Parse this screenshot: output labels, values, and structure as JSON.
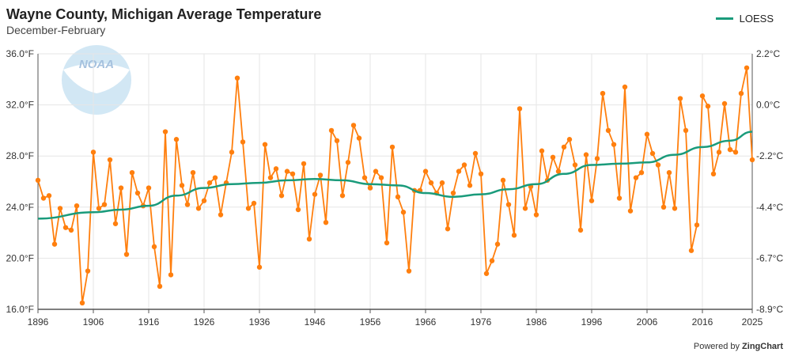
{
  "chart_data": {
    "type": "line",
    "title": "Wayne County, Michigan Average Temperature",
    "subtitle": "December-February",
    "logo_text": "NOAA",
    "credit_prefix": "Powered by",
    "credit_brand": "ZingChart",
    "x_ticks": [
      "1896",
      "1906",
      "1916",
      "1926",
      "1936",
      "1946",
      "1956",
      "1966",
      "1976",
      "1986",
      "1996",
      "2006",
      "2016",
      "2025"
    ],
    "xlim": [
      1896,
      2025
    ],
    "y_left_ticks": [
      "16.0°F",
      "20.0°F",
      "24.0°F",
      "28.0°F",
      "32.0°F",
      "36.0°F"
    ],
    "y_right_ticks": [
      "-8.9°C",
      "-6.7°C",
      "-4.4°C",
      "-2.2°C",
      "0.0°C",
      "2.2°C"
    ],
    "ylim": [
      16,
      36
    ],
    "grid": true,
    "legend_position": "top-right",
    "colors": {
      "temperature": "#ff7f0e",
      "loess": "#1a9b7b",
      "grid": "#e6e6e6"
    },
    "series": [
      {
        "key": "temperature",
        "x_start": 1896,
        "values": [
          26.1,
          24.7,
          24.9,
          21.1,
          23.9,
          22.4,
          22.2,
          24.1,
          16.5,
          19.0,
          28.3,
          23.9,
          24.2,
          27.7,
          22.7,
          25.5,
          20.3,
          26.7,
          25.1,
          24.1,
          25.5,
          20.9,
          17.8,
          29.9,
          18.7,
          29.3,
          25.7,
          24.2,
          26.7,
          23.9,
          24.5,
          25.9,
          26.3,
          23.4,
          25.9,
          28.3,
          34.1,
          29.1,
          23.9,
          24.3,
          19.3,
          28.9,
          26.3,
          27.0,
          24.9,
          26.8,
          26.6,
          23.8,
          27.4,
          21.5,
          25.0,
          26.5,
          22.8,
          30.0,
          29.2,
          24.9,
          27.5,
          30.4,
          29.4,
          26.3,
          25.5,
          26.8,
          26.3,
          21.2,
          28.7,
          24.8,
          23.6,
          19.0,
          25.3,
          25.3,
          26.8,
          25.9,
          25.1,
          25.9,
          22.3,
          25.1,
          26.8,
          27.3,
          25.7,
          28.2,
          26.6,
          18.8,
          19.8,
          21.1,
          26.1,
          24.2,
          21.8,
          31.7,
          23.9,
          25.6,
          23.4,
          28.4,
          26.1,
          27.9,
          26.8,
          28.7,
          29.3,
          27.3,
          22.2,
          28.1,
          24.5,
          27.8,
          32.9,
          30.0,
          28.9,
          24.7,
          33.4,
          23.7,
          26.3,
          26.7,
          29.7,
          28.2,
          27.3,
          24.0,
          26.7,
          23.9,
          32.5,
          30.0,
          20.6,
          22.6,
          32.7,
          31.9,
          26.6,
          28.3,
          32.1,
          28.5,
          28.3,
          32.9,
          34.9,
          27.7
        ]
      },
      {
        "name": "LOESS",
        "key": "loess",
        "x": [
          1896,
          1906,
          1911,
          1916,
          1921,
          1926,
          1931,
          1936,
          1941,
          1946,
          1951,
          1956,
          1961,
          1966,
          1971,
          1976,
          1981,
          1986,
          1991,
          1996,
          2001,
          2006,
          2011,
          2016,
          2021,
          2025
        ],
        "values": [
          23.1,
          23.6,
          23.8,
          24.1,
          24.9,
          25.5,
          25.8,
          25.9,
          26.1,
          26.2,
          26.1,
          25.8,
          25.7,
          25.1,
          24.8,
          25.0,
          25.4,
          25.8,
          26.6,
          27.3,
          27.4,
          27.5,
          28.1,
          28.7,
          29.2,
          29.9
        ]
      }
    ]
  }
}
